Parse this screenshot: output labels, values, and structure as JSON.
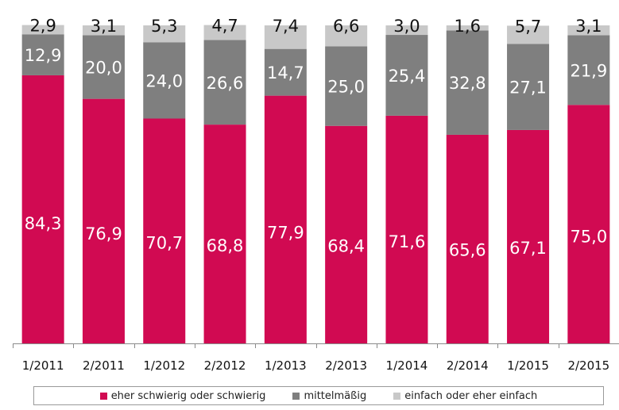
{
  "chart_data": {
    "type": "bar",
    "stacked": true,
    "categories": [
      "1/2011",
      "2/2011",
      "1/2012",
      "2/2012",
      "1/2013",
      "2/2013",
      "1/2014",
      "2/2014",
      "1/2015",
      "2/2015"
    ],
    "series": [
      {
        "name": "eher schwierig oder schwierig",
        "color": "#d10a52",
        "values": [
          84.3,
          76.9,
          70.7,
          68.8,
          77.9,
          68.4,
          71.6,
          65.6,
          67.1,
          75.0
        ],
        "labels": [
          "84,3",
          "76,9",
          "70,7",
          "68,8",
          "77,9",
          "68,4",
          "71,6",
          "65,6",
          "67,1",
          "75,0"
        ],
        "label_color": "#ffffff"
      },
      {
        "name": "mittelmäßig",
        "color": "#7f7f7f",
        "values": [
          12.9,
          20.0,
          24.0,
          26.6,
          14.7,
          25.0,
          25.4,
          32.8,
          27.1,
          21.9
        ],
        "labels": [
          "12,9",
          "20,0",
          "24,0",
          "26,6",
          "14,7",
          "25,0",
          "25,4",
          "32,8",
          "27,1",
          "21,9"
        ],
        "label_color": "#ffffff"
      },
      {
        "name": "einfach oder eher einfach",
        "color": "#c8c8c8",
        "values": [
          2.9,
          3.1,
          5.3,
          4.7,
          7.4,
          6.6,
          3.0,
          1.6,
          5.7,
          3.1
        ],
        "labels": [
          "2,9",
          "3,1",
          "5,3",
          "4,7",
          "7,4",
          "6,6",
          "3,0",
          "1,6",
          "5,7",
          "3,1"
        ],
        "label_color": "#111111"
      }
    ],
    "ylim": [
      0,
      100
    ],
    "grid": false,
    "legend_position": "bottom",
    "title": "",
    "xlabel": "",
    "ylabel": ""
  }
}
